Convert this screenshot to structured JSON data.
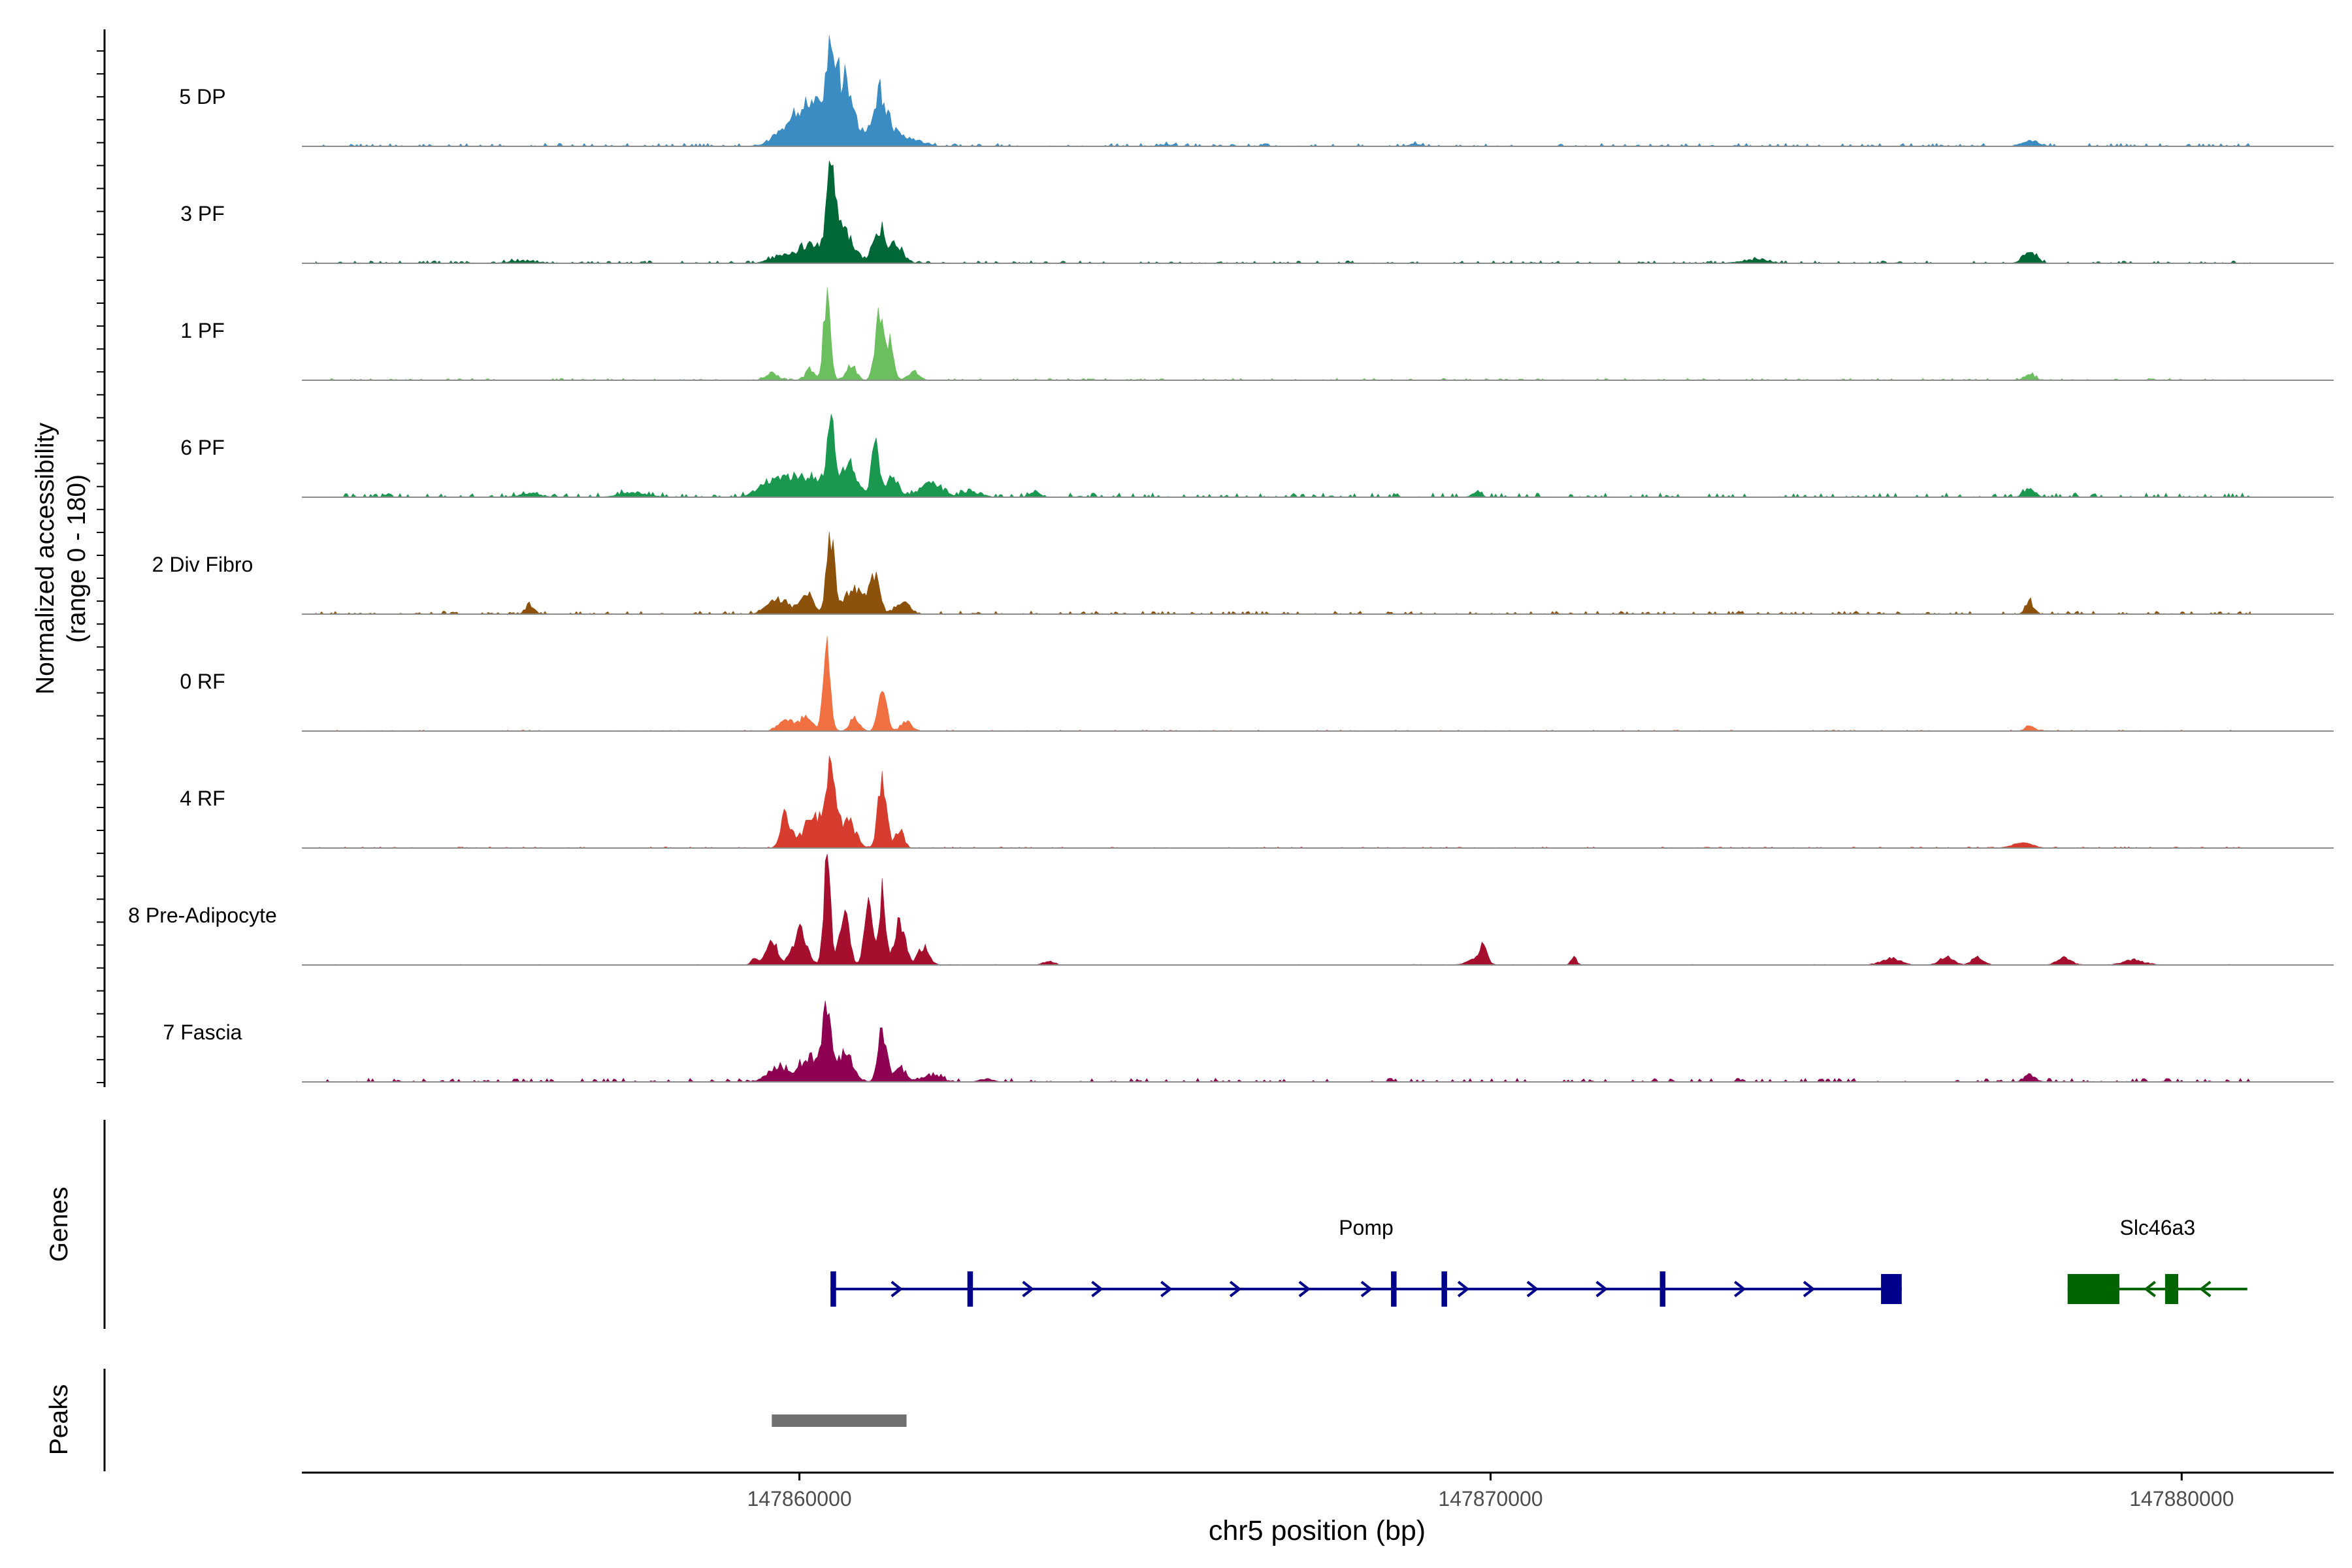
{
  "chart_data": {
    "type": "area",
    "title": "",
    "xlabel": "chr5 position (bp)",
    "ylabel_line1": "Normalized accessibility",
    "ylabel_line2": "(range 0 - 180)",
    "xlim": [
      147852800,
      147882200
    ],
    "ylim": [
      0,
      180
    ],
    "x_ticks": [
      {
        "value": 147860000,
        "label": "147860000"
      },
      {
        "value": 147870000,
        "label": "147870000"
      },
      {
        "value": 147880000,
        "label": "147880000"
      }
    ],
    "coverage_range": [
      147853000,
      147881000
    ],
    "series": [
      {
        "name": "5 DP",
        "color": "#3B8CC2",
        "noise": 5,
        "peaks": [
          [
            147859800,
            160,
            10
          ],
          [
            147860030,
            260,
            30
          ],
          [
            147860300,
            260,
            48
          ],
          [
            147860450,
            55,
            120
          ],
          [
            147860650,
            140,
            90
          ],
          [
            147861150,
            100,
            70
          ],
          [
            147861300,
            180,
            25
          ],
          [
            147861700,
            140,
            8
          ],
          [
            147877800,
            120,
            10
          ],
          [
            147868900,
            80,
            4
          ],
          [
            147865300,
            100,
            3
          ]
        ]
      },
      {
        "name": "3 PF",
        "color": "#006837",
        "noise": 4,
        "peaks": [
          [
            147859700,
            150,
            10
          ],
          [
            147860150,
            200,
            30
          ],
          [
            147860450,
            55,
            112
          ],
          [
            147860600,
            160,
            60
          ],
          [
            147861150,
            85,
            60
          ],
          [
            147861400,
            100,
            30
          ],
          [
            147877800,
            100,
            18
          ],
          [
            147873800,
            200,
            6
          ],
          [
            147856000,
            200,
            4
          ]
        ]
      },
      {
        "name": "1 PF",
        "color": "#6BBF5E",
        "noise": 3,
        "peaks": [
          [
            147859600,
            90,
            12
          ],
          [
            147860150,
            60,
            18
          ],
          [
            147860400,
            48,
            148
          ],
          [
            147860750,
            70,
            25
          ],
          [
            147861150,
            60,
            108
          ],
          [
            147861300,
            55,
            60
          ],
          [
            147861650,
            80,
            15
          ],
          [
            147877800,
            80,
            10
          ]
        ]
      },
      {
        "name": "6 PF",
        "color": "#1A9850",
        "noise": 7,
        "peaks": [
          [
            147859600,
            180,
            30
          ],
          [
            147859900,
            110,
            25
          ],
          [
            147860200,
            150,
            35
          ],
          [
            147860450,
            55,
            118
          ],
          [
            147860700,
            130,
            50
          ],
          [
            147861100,
            60,
            80
          ],
          [
            147861350,
            90,
            30
          ],
          [
            147861900,
            160,
            22
          ],
          [
            147862500,
            140,
            8
          ],
          [
            147863400,
            70,
            10
          ],
          [
            147877800,
            80,
            14
          ],
          [
            147857600,
            200,
            8
          ],
          [
            147856100,
            150,
            6
          ],
          [
            147869800,
            60,
            10
          ]
        ]
      },
      {
        "name": "2 Div Fibro",
        "color": "#8C510A",
        "noise": 5,
        "peaks": [
          [
            147859700,
            150,
            25
          ],
          [
            147860100,
            90,
            35
          ],
          [
            147860450,
            60,
            128
          ],
          [
            147860800,
            160,
            40
          ],
          [
            147861100,
            70,
            55
          ],
          [
            147861500,
            100,
            18
          ],
          [
            147877800,
            60,
            20
          ],
          [
            147856100,
            60,
            16
          ]
        ]
      },
      {
        "name": "0 RF",
        "color": "#F07042",
        "noise": 2,
        "peaks": [
          [
            147859800,
            100,
            20
          ],
          [
            147860100,
            90,
            25
          ],
          [
            147860400,
            50,
            148
          ],
          [
            147860800,
            70,
            22
          ],
          [
            147861200,
            60,
            72
          ],
          [
            147861550,
            80,
            15
          ],
          [
            147877800,
            70,
            8
          ]
        ]
      },
      {
        "name": "4 RF",
        "color": "#D63D2E",
        "noise": 2,
        "peaks": [
          [
            147859800,
            70,
            55
          ],
          [
            147860200,
            150,
            50
          ],
          [
            147860450,
            70,
            120
          ],
          [
            147860700,
            110,
            45
          ],
          [
            147861200,
            60,
            120
          ],
          [
            147861450,
            60,
            30
          ],
          [
            147877700,
            150,
            8
          ]
        ]
      },
      {
        "name": "8 Pre-Adipocyte",
        "color": "#A50F2D",
        "noise": 1,
        "peaks": [
          [
            147859600,
            80,
            40
          ],
          [
            147860000,
            100,
            55
          ],
          [
            147860400,
            50,
            165
          ],
          [
            147860650,
            70,
            80
          ],
          [
            147861000,
            60,
            90
          ],
          [
            147861200,
            50,
            115
          ],
          [
            147861450,
            80,
            70
          ],
          [
            147861800,
            80,
            30
          ],
          [
            147869900,
            50,
            30
          ],
          [
            147869800,
            120,
            10
          ],
          [
            147871200,
            40,
            15
          ],
          [
            147875800,
            130,
            12
          ],
          [
            147876600,
            100,
            14
          ],
          [
            147877050,
            80,
            14
          ],
          [
            147878300,
            100,
            12
          ],
          [
            147879300,
            150,
            8
          ],
          [
            147859350,
            50,
            10
          ],
          [
            147863600,
            80,
            6
          ]
        ]
      },
      {
        "name": "7 Fascia",
        "color": "#8E0152",
        "noise": 6,
        "peaks": [
          [
            147859700,
            150,
            25
          ],
          [
            147860150,
            140,
            40
          ],
          [
            147860400,
            60,
            118
          ],
          [
            147860650,
            120,
            45
          ],
          [
            147861200,
            60,
            92
          ],
          [
            147861450,
            80,
            25
          ],
          [
            147861900,
            150,
            10
          ],
          [
            147877800,
            80,
            12
          ],
          [
            147862700,
            100,
            5
          ]
        ]
      }
    ],
    "genes_label": "Genes",
    "genes": [
      {
        "name": "Pomp",
        "color": "#00008B",
        "strand": "+",
        "start": 147860450,
        "end": 147875950,
        "exons": [
          [
            147860450,
            147860530
          ],
          [
            147862430,
            147862510
          ],
          [
            147868560,
            147868640
          ],
          [
            147869290,
            147869370
          ],
          [
            147872450,
            147872530
          ],
          [
            147875650,
            147875950
          ]
        ],
        "arrows": [
          147861400,
          147863300,
          147864300,
          147865300,
          147866300,
          147867300,
          147868200,
          147869600,
          147870600,
          147871600,
          147873600,
          147874600
        ]
      },
      {
        "name": "Slc46a3",
        "color": "#006400",
        "strand": "-",
        "start": 147878350,
        "end": 147880950,
        "exons": [
          [
            147878350,
            147879100
          ],
          [
            147879760,
            147879950
          ]
        ],
        "arrows": [
          147879550,
          147880350
        ]
      }
    ],
    "peaks_label": "Peaks",
    "peaks": [
      {
        "start": 147859600,
        "end": 147861550,
        "color": "#707070"
      }
    ]
  }
}
